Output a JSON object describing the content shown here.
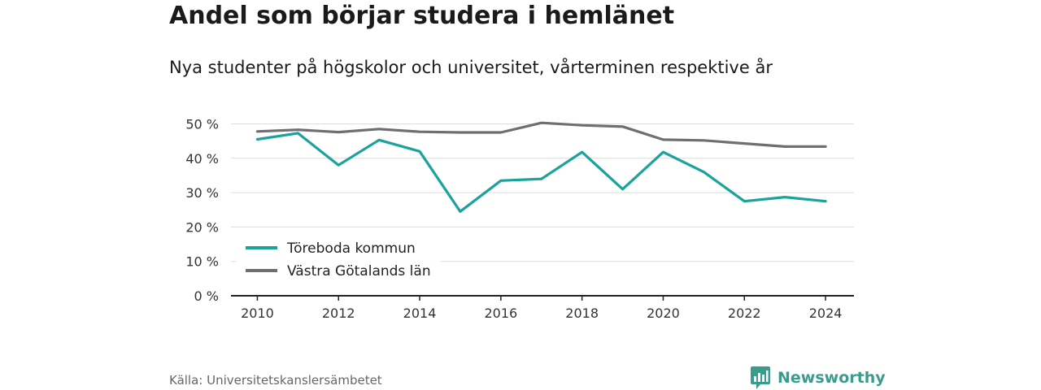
{
  "header": {
    "title": "Andel som börjar studera i hemlänet",
    "subtitle": "Nya studenter på högskolor och universitet, vårterminen respektive år"
  },
  "footer": {
    "source": "Källa: Universitetskanslersämbetet",
    "brand": "Newsworthy",
    "brand_icon": "bar-chart-speech-bubble-icon",
    "brand_color": "#3a9c8c"
  },
  "chart_data": {
    "type": "line",
    "x": [
      2010,
      2011,
      2012,
      2013,
      2014,
      2015,
      2016,
      2017,
      2018,
      2019,
      2020,
      2021,
      2022,
      2023,
      2024
    ],
    "series": [
      {
        "name": "Töreboda kommun",
        "color": "#1aa39a",
        "values": [
          45.5,
          47.3,
          38,
          45.3,
          42,
          24.5,
          33.5,
          34,
          41.8,
          31,
          41.8,
          36,
          27.5,
          28.7,
          27.5
        ]
      },
      {
        "name": "Västra Götalands län",
        "color": "#6e6e73",
        "values": [
          47.8,
          48.3,
          47.6,
          48.5,
          47.7,
          47.5,
          47.5,
          50.3,
          49.6,
          49.2,
          45.4,
          45.2,
          44.3,
          43.4,
          43.4
        ]
      }
    ],
    "xticks": [
      2010,
      2012,
      2014,
      2016,
      2018,
      2020,
      2022,
      2024
    ],
    "yticks": [
      0,
      10,
      20,
      30,
      40,
      50
    ],
    "ytick_suffix": " %",
    "ylim": [
      0,
      52
    ],
    "xlim": [
      2009.35,
      2024.7
    ],
    "grid": true,
    "legend_position": "bottom-left"
  }
}
